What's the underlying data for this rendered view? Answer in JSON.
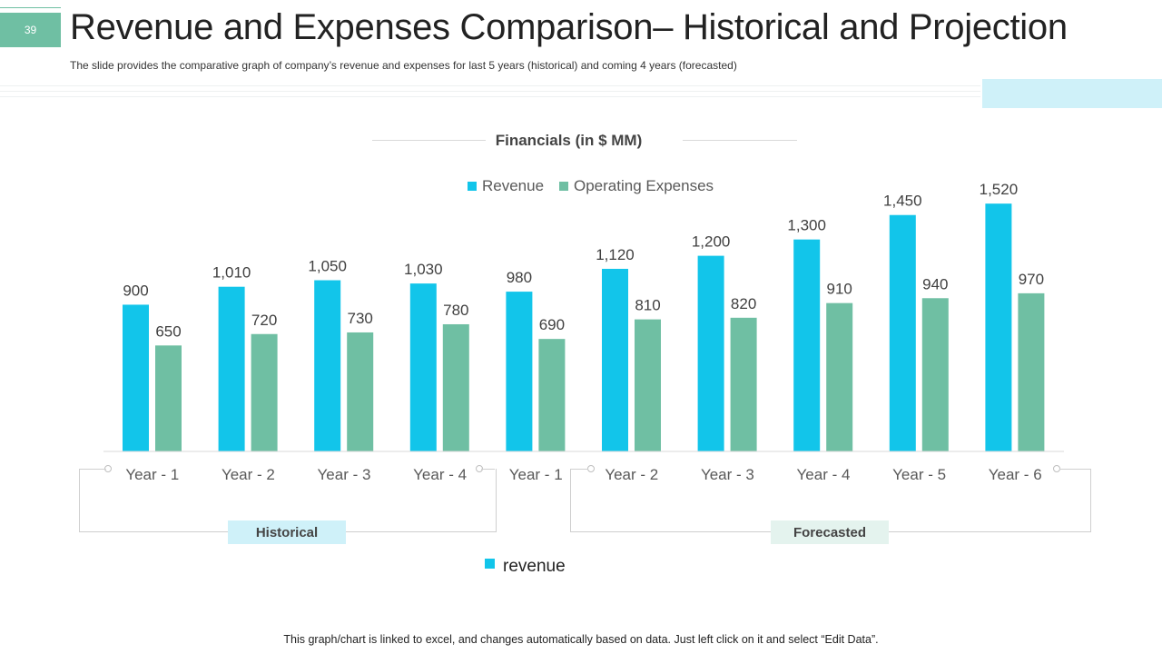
{
  "slide": {
    "number": "39",
    "title": "Revenue and Expenses Comparison– Historical and Projection",
    "subtitle": "The slide provides the comparative graph of company’s revenue and expenses for last 5 years (historical) and coming 4 years (forecasted)",
    "footer": "This graph/chart is linked to excel, and changes automatically based on data. Just left click on it and select “Edit Data”."
  },
  "colors": {
    "revenue": "#12c5ea",
    "expenses": "#6fbfa3",
    "historical_tag_bg": "#cff1f9",
    "forecasted_tag_bg": "#e4f3ee",
    "accent": "#6fbfa3"
  },
  "groups": {
    "historical_label": "Historical",
    "forecasted_label": "Forecasted"
  },
  "bottom_legend": {
    "label": "revenue"
  },
  "chart_data": {
    "type": "bar",
    "title": "Financials (in $ MM)",
    "categories": [
      "Year - 1",
      "Year - 2",
      "Year - 3",
      "Year - 4",
      "Year - 1",
      "Year - 2",
      "Year - 3",
      "Year - 4",
      "Year - 5",
      "Year - 6"
    ],
    "series": [
      {
        "name": "Revenue",
        "values": [
          900,
          1010,
          1050,
          1030,
          980,
          1120,
          1200,
          1300,
          1450,
          1520
        ],
        "color": "#12c5ea"
      },
      {
        "name": "Operating Expenses",
        "values": [
          650,
          720,
          730,
          780,
          690,
          810,
          820,
          910,
          940,
          970
        ],
        "color": "#6fbfa3"
      }
    ],
    "value_labels": [
      [
        "900",
        "1,010",
        "1,050",
        "1,030",
        "980",
        "1,120",
        "1,200",
        "1,300",
        "1,450",
        "1,520"
      ],
      [
        "650",
        "720",
        "730",
        "780",
        "690",
        "810",
        "820",
        "910",
        "940",
        "970"
      ]
    ],
    "ylim": [
      0,
      1600
    ],
    "grid": false,
    "legend": "top-center"
  }
}
